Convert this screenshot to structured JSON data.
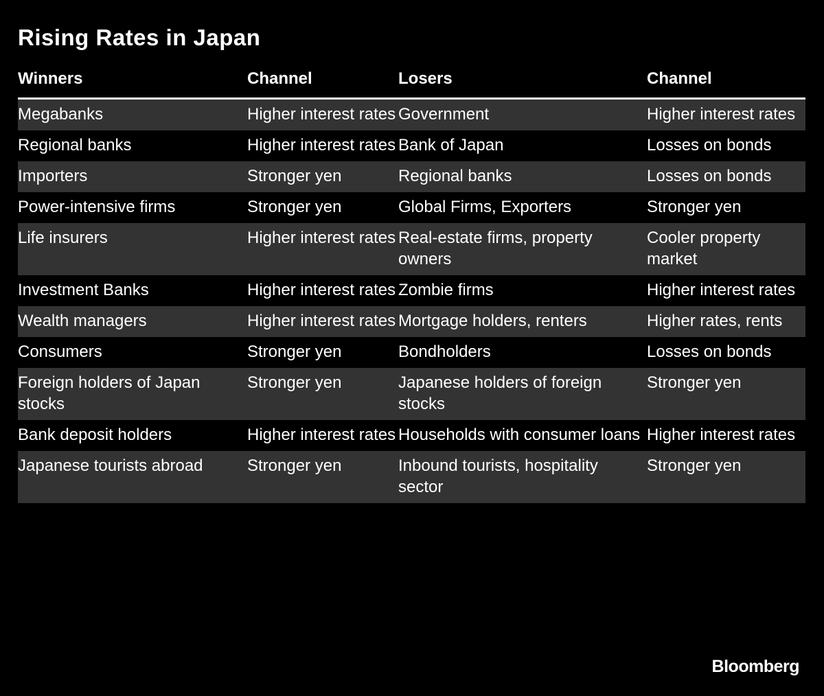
{
  "title": "Rising Rates in Japan",
  "table": {
    "header": [
      "Winners",
      "Channel",
      "Losers",
      "Channel"
    ],
    "rows": [
      [
        "Megabanks",
        "Higher interest rates",
        "Government",
        "Higher interest rates"
      ],
      [
        "Regional banks",
        "Higher interest rates",
        "Bank of Japan",
        "Losses on bonds"
      ],
      [
        "Importers",
        "Stronger yen",
        "Regional banks",
        "Losses on bonds"
      ],
      [
        "Power-intensive firms",
        "Stronger yen",
        "Global Firms, Exporters",
        "Stronger yen"
      ],
      [
        "Life insurers",
        "Higher interest rates",
        "Real-estate firms, property owners",
        "Cooler property market"
      ],
      [
        "Investment Banks",
        "Higher interest rates",
        "Zombie firms",
        "Higher interest rates"
      ],
      [
        "Wealth managers",
        "Higher interest rates",
        "Mortgage holders, renters",
        "Higher rates, rents"
      ],
      [
        "Consumers",
        "Stronger yen",
        "Bondholders",
        "Losses on bonds"
      ],
      [
        "Foreign holders of Japan stocks",
        "Stronger yen",
        "Japanese holders of foreign stocks",
        "Stronger yen"
      ],
      [
        "Bank deposit holders",
        "Higher interest rates",
        "Households with consumer loans",
        "Higher interest rates"
      ],
      [
        "Japanese tourists abroad",
        "Stronger yen",
        "Inbound tourists, hospitality sector",
        "Stronger yen"
      ]
    ]
  },
  "footer": "Bloomberg"
}
